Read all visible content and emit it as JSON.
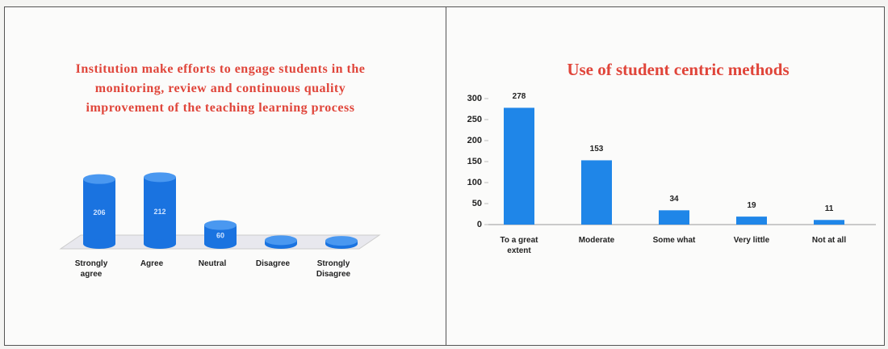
{
  "chart_data": [
    {
      "type": "cylinder3d",
      "title": "Institution make efforts to engage students in the monitoring, review and continuous quality improvement of the teaching learning process",
      "categories": [
        "Strongly agree",
        "Agree",
        "Neutral",
        "Disagree",
        "Strongly Disagree"
      ],
      "values": [
        206,
        212,
        60,
        12,
        10
      ],
      "value_labels": [
        "206",
        "212",
        "60",
        null,
        null
      ],
      "color": "#1a73e0"
    },
    {
      "type": "bar",
      "title": "Use of student centric methods",
      "categories": [
        "To a great extent",
        "Moderate",
        "Some what",
        "Very little",
        "Not at all"
      ],
      "values": [
        278,
        153,
        34,
        19,
        11
      ],
      "color": "#1f86e8",
      "ylim": [
        0,
        300
      ],
      "yticks": [
        0,
        50,
        100,
        150,
        200,
        250,
        300
      ],
      "grid": false
    }
  ]
}
